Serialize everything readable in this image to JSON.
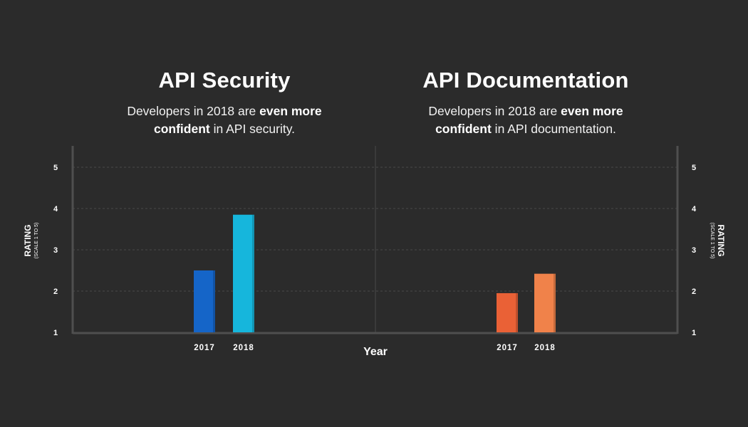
{
  "panels": [
    {
      "title": "API Security",
      "subtitle_pre": "Developers in 2018 are ",
      "subtitle_bold_1": "even more",
      "subtitle_bold_2": "confident",
      "subtitle_post": " in API security."
    },
    {
      "title": "API Documentation",
      "subtitle_pre": "Developers in 2018 are ",
      "subtitle_bold_1": "even more",
      "subtitle_bold_2": "confident",
      "subtitle_post": " in API documentation."
    }
  ],
  "axis": {
    "ylabel": "RATING",
    "ylabel_sub": "(SCALE 1 TO 5)",
    "xlabel": "Year"
  },
  "chart_data": [
    {
      "type": "bar",
      "title": "API Security",
      "categories": [
        "2017",
        "2018"
      ],
      "values": [
        2.5,
        3.85
      ],
      "colors": [
        "#1565c8",
        "#16b6dc"
      ],
      "xlabel": "Year",
      "ylabel": "RATING",
      "ylim": [
        1,
        5
      ],
      "yticks": [
        1,
        2,
        3,
        4,
        5
      ],
      "grid": true
    },
    {
      "type": "bar",
      "title": "API Documentation",
      "categories": [
        "2017",
        "2018"
      ],
      "values": [
        1.95,
        2.42
      ],
      "colors": [
        "#ea6136",
        "#f0824a"
      ],
      "xlabel": "Year",
      "ylabel": "RATING",
      "ylim": [
        1,
        5
      ],
      "yticks": [
        1,
        2,
        3,
        4,
        5
      ],
      "grid": true
    }
  ]
}
